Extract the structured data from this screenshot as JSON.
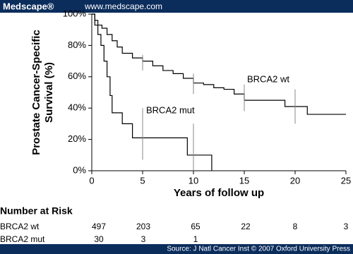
{
  "header": {
    "brand": "Medscape®",
    "url": "www.medscape.com"
  },
  "footer": "Source: J Natl Cancer Inst © 2007 Oxford University Press",
  "chart_data": {
    "type": "step",
    "ylabel": [
      "Prostate Cancer-Specific",
      "Survival (%)"
    ],
    "xlabel": "Years of follow up",
    "xlim": [
      0,
      25
    ],
    "xticks": [
      0,
      5,
      10,
      15,
      20,
      25
    ],
    "ylim": [
      0,
      100
    ],
    "yticks": [
      {
        "value": 0,
        "label": "0%"
      },
      {
        "value": 20,
        "label": "20%"
      },
      {
        "value": 40,
        "label": "40%"
      },
      {
        "value": 60,
        "label": "60%"
      },
      {
        "value": 80,
        "label": "80%"
      },
      {
        "value": 100,
        "label": "100%"
      }
    ],
    "series": [
      {
        "name": "BRCA2 wt",
        "color": "#000000",
        "x": [
          0,
          0.3,
          0.6,
          1,
          1.5,
          2,
          2.5,
          3,
          4,
          5,
          6,
          7,
          8,
          9,
          10,
          11,
          12,
          13,
          14,
          15,
          19,
          21.2,
          25
        ],
        "values": [
          100,
          96,
          93,
          91,
          87,
          83,
          79,
          75,
          72,
          70,
          67,
          64,
          62,
          59,
          56,
          55,
          53,
          52,
          49,
          45,
          41,
          36,
          36
        ],
        "ci_x": [
          5,
          10,
          15,
          20
        ],
        "ci_low": [
          64,
          49,
          38,
          30
        ],
        "ci_high": [
          74,
          62,
          55,
          52
        ]
      },
      {
        "name": "BRCA2 mut",
        "color": "#000000",
        "x": [
          0,
          0.3,
          0.6,
          0.9,
          1.2,
          1.5,
          1.8,
          2,
          3,
          4,
          9.4,
          11.8
        ],
        "values": [
          100,
          93,
          87,
          80,
          70,
          60,
          48,
          37,
          30,
          21,
          10,
          0
        ],
        "ci_x": [
          5,
          10
        ],
        "ci_low": [
          7,
          0
        ],
        "ci_high": [
          40,
          30
        ]
      }
    ]
  },
  "risk_table": {
    "title": "Number at Risk",
    "rows": [
      {
        "label": "BRCA2 wt",
        "values": [
          497,
          203,
          65,
          22,
          8,
          3
        ]
      },
      {
        "label": "BRCA2 mut",
        "values": [
          30,
          3,
          1
        ]
      }
    ]
  }
}
